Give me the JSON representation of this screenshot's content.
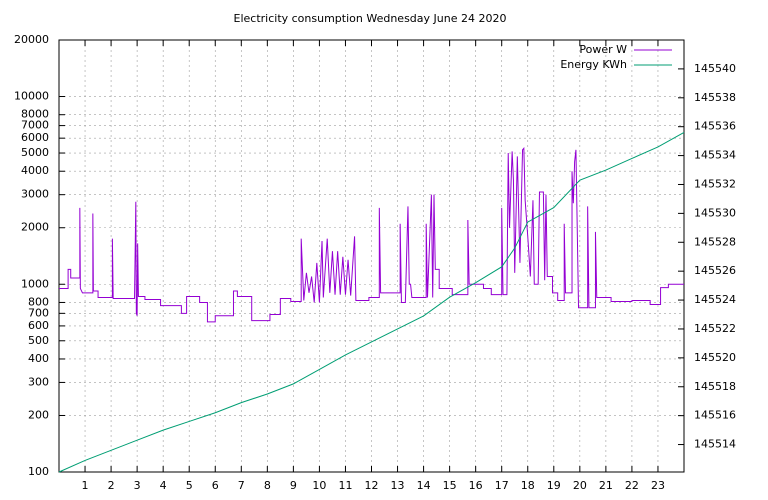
{
  "chart_data": {
    "type": "line",
    "title": "Electricity consumption Wednesday June 24 2020",
    "xlim": [
      0,
      24
    ],
    "xticks": [
      1,
      2,
      3,
      4,
      5,
      6,
      7,
      8,
      9,
      10,
      11,
      12,
      13,
      14,
      15,
      16,
      17,
      18,
      19,
      20,
      21,
      22,
      23
    ],
    "ylim": [
      100,
      20000
    ],
    "yticks": [
      100,
      200,
      300,
      400,
      500,
      600,
      700,
      800,
      1000,
      2000,
      3000,
      4000,
      5000,
      6000,
      7000,
      8000,
      10000,
      20000
    ],
    "log_scale": true,
    "y2lim": [
      145512.1,
      145542
    ],
    "y2ticks": [
      145514,
      145516,
      145518,
      145520,
      145522,
      145524,
      145526,
      145528,
      145530,
      145532,
      145534,
      145536,
      145538,
      145540
    ],
    "grid": true,
    "legend": "top-right",
    "series": [
      {
        "name": "Power W",
        "color": "#9400d3",
        "x": [
          0,
          0.35,
          0.35,
          0.45,
          0.45,
          0.8,
          0.8,
          0.82,
          0.9,
          1.3,
          1.3,
          1.32,
          1.5,
          1.5,
          2.05,
          2.05,
          2.08,
          2.9,
          2.95,
          2.97,
          3.0,
          3.02,
          3.05,
          3.3,
          3.3,
          3.9,
          3.9,
          4.7,
          4.7,
          4.9,
          4.9,
          5.4,
          5.4,
          5.7,
          5.7,
          6.0,
          6.0,
          6.7,
          6.7,
          6.85,
          6.85,
          7.4,
          7.4,
          8.1,
          8.1,
          8.5,
          8.5,
          8.9,
          8.9,
          9.3,
          9.3,
          9.4,
          9.5,
          9.6,
          9.7,
          9.8,
          9.9,
          10.0,
          10.1,
          10.15,
          10.3,
          10.4,
          10.5,
          10.6,
          10.7,
          10.8,
          10.9,
          11.0,
          11.1,
          11.2,
          11.35,
          11.4,
          11.9,
          11.9,
          12.3,
          12.3,
          12.35,
          13.1,
          13.1,
          13.15,
          13.3,
          13.4,
          13.45,
          13.5,
          13.55,
          14.1,
          14.1,
          14.15,
          14.3,
          14.35,
          14.4,
          14.45,
          14.6,
          14.6,
          15.1,
          15.1,
          15.7,
          15.7,
          15.75,
          16.3,
          16.3,
          16.6,
          16.6,
          17.0,
          17.0,
          17.05,
          17.2,
          17.25,
          17.3,
          17.4,
          17.45,
          17.5,
          17.6,
          17.7,
          17.8,
          17.85,
          17.9,
          18.0,
          18.1,
          18.2,
          18.25,
          18.4,
          18.45,
          18.6,
          18.65,
          18.7,
          18.75,
          18.95,
          18.95,
          19.15,
          19.15,
          19.4,
          19.4,
          19.45,
          19.7,
          19.7,
          19.75,
          19.8,
          19.85,
          19.9,
          19.95,
          20.3,
          20.3,
          20.35,
          20.6,
          20.6,
          20.65,
          21.2,
          21.2,
          22.0,
          22.0,
          22.7,
          22.7,
          23.1,
          23.1,
          23.4,
          23.4,
          24
        ],
        "values": [
          950,
          950,
          1200,
          1200,
          1080,
          1080,
          2550,
          950,
          900,
          900,
          2380,
          920,
          920,
          850,
          850,
          1750,
          840,
          840,
          2750,
          700,
          680,
          1650,
          860,
          860,
          830,
          830,
          770,
          770,
          700,
          700,
          860,
          860,
          800,
          800,
          630,
          630,
          680,
          680,
          920,
          920,
          860,
          860,
          640,
          640,
          690,
          690,
          840,
          840,
          810,
          810,
          1750,
          820,
          1150,
          900,
          1100,
          800,
          1300,
          800,
          1700,
          850,
          1750,
          900,
          1500,
          880,
          1500,
          880,
          1400,
          880,
          1350,
          870,
          1800,
          820,
          820,
          850,
          850,
          2550,
          900,
          900,
          2100,
          800,
          800,
          2600,
          1000,
          1000,
          850,
          850,
          2100,
          850,
          3000,
          850,
          3000,
          1200,
          1200,
          950,
          950,
          880,
          880,
          2200,
          1000,
          1000,
          950,
          950,
          880,
          880,
          2550,
          880,
          880,
          5000,
          2000,
          5100,
          3600,
          1150,
          4800,
          1300,
          5200,
          5300,
          2800,
          1800,
          1100,
          2800,
          1000,
          1000,
          3100,
          3100,
          1050,
          3000,
          1100,
          1100,
          900,
          900,
          820,
          820,
          2100,
          900,
          900,
          4000,
          2700,
          4500,
          5200,
          2000,
          750,
          750,
          2600,
          750,
          750,
          1900,
          850,
          850,
          810,
          810,
          820,
          820,
          780,
          780,
          960,
          960,
          1000,
          1000
        ]
      },
      {
        "name": "Energy KWh",
        "color": "#009e73",
        "axis": "y2",
        "x": [
          0,
          1,
          2,
          3,
          4,
          5,
          6,
          7,
          8,
          9,
          10,
          11,
          12,
          13,
          14,
          15,
          16,
          17,
          17.5,
          18,
          19,
          20,
          21,
          22,
          23,
          24
        ],
        "values": [
          145512.1,
          145512.9,
          145513.6,
          145514.3,
          145515.0,
          145515.6,
          145516.2,
          145516.9,
          145517.5,
          145518.2,
          145519.2,
          145520.2,
          145521.1,
          145522.0,
          145522.9,
          145524.2,
          145525.2,
          145526.3,
          145527.6,
          145529.4,
          145530.4,
          145532.3,
          145533.0,
          145533.8,
          145534.6,
          145535.6
        ]
      }
    ]
  }
}
